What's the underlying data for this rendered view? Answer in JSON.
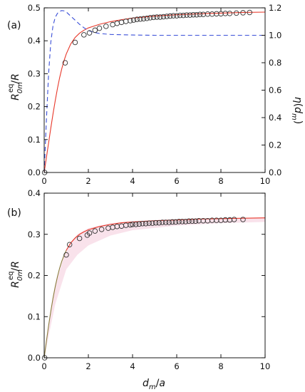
{
  "chart_data": [
    {
      "type": "line",
      "panel_label": "(a)",
      "xlabel": "d_m/a",
      "ylabel": "R_0m^eq/R",
      "y2label": "η(d_m)",
      "xlim": [
        0,
        10
      ],
      "ylim": [
        0,
        0.5
      ],
      "y2lim": [
        0,
        1.2
      ],
      "x_ticks": [
        "0",
        "2",
        "4",
        "6",
        "8",
        "10"
      ],
      "y_ticks": [
        "0.0",
        "0.1",
        "0.2",
        "0.3",
        "0.4",
        "0.5"
      ],
      "y2_ticks": [
        "0.0",
        "0.2",
        "0.4",
        "0.6",
        "0.8",
        "1.0",
        "1.2"
      ],
      "grid": false,
      "show_x_tick_labels": true,
      "series": [
        {
          "kind": "scatter",
          "axis": "left",
          "marker": "open-circle",
          "color": "#333333",
          "x": [
            0.02,
            0.95,
            1.4,
            1.8,
            2.05,
            2.3,
            2.5,
            2.8,
            3.1,
            3.3,
            3.5,
            3.7,
            3.9,
            4.05,
            4.2,
            4.35,
            4.5,
            4.65,
            4.8,
            4.95,
            5.1,
            5.25,
            5.4,
            5.55,
            5.7,
            5.85,
            6.0,
            6.15,
            6.3,
            6.45,
            6.6,
            6.75,
            6.9,
            7.05,
            7.2,
            7.4,
            7.6,
            7.8,
            8.0,
            8.2,
            8.4,
            8.7,
            9.0,
            9.3
          ],
          "y": [
            0.0,
            0.333,
            0.395,
            0.418,
            0.424,
            0.432,
            0.438,
            0.444,
            0.449,
            0.453,
            0.456,
            0.459,
            0.461,
            0.463,
            0.465,
            0.466,
            0.467,
            0.468,
            0.47,
            0.471,
            0.472,
            0.472,
            0.473,
            0.474,
            0.475,
            0.476,
            0.476,
            0.477,
            0.477,
            0.478,
            0.478,
            0.479,
            0.479,
            0.48,
            0.48,
            0.481,
            0.481,
            0.482,
            0.482,
            0.483,
            0.483,
            0.484,
            0.485,
            0.486
          ]
        },
        {
          "kind": "line",
          "axis": "left",
          "color": "#e8382a",
          "dash": "solid",
          "x": [
            0,
            0.1,
            0.2,
            0.3,
            0.4,
            0.5,
            0.6,
            0.7,
            0.8,
            0.9,
            1.0,
            1.2,
            1.4,
            1.6,
            1.8,
            2.0,
            2.5,
            3.0,
            3.5,
            4.0,
            5.0,
            6.0,
            7.0,
            8.0,
            9.0,
            10.0
          ],
          "y": [
            0.0,
            0.045,
            0.09,
            0.135,
            0.178,
            0.218,
            0.255,
            0.288,
            0.316,
            0.34,
            0.36,
            0.39,
            0.41,
            0.423,
            0.432,
            0.439,
            0.45,
            0.458,
            0.464,
            0.469,
            0.475,
            0.479,
            0.482,
            0.484,
            0.486,
            0.487
          ]
        },
        {
          "kind": "line",
          "axis": "right",
          "color": "#3a4fd8",
          "dash": "dashed",
          "x": [
            0,
            0.1,
            0.2,
            0.3,
            0.4,
            0.5,
            0.6,
            0.7,
            0.8,
            0.9,
            1.0,
            1.1,
            1.2,
            1.4,
            1.6,
            1.8,
            2.0,
            2.2,
            2.5,
            3.0,
            4.0,
            5.0,
            10.0
          ],
          "y": [
            0.0,
            0.38,
            0.72,
            0.95,
            1.07,
            1.13,
            1.16,
            1.175,
            1.18,
            1.178,
            1.17,
            1.155,
            1.14,
            1.11,
            1.08,
            1.055,
            1.035,
            1.023,
            1.013,
            1.006,
            1.002,
            1.0,
            1.0
          ]
        }
      ]
    },
    {
      "type": "line",
      "panel_label": "(b)",
      "xlabel": "d_m/a",
      "ylabel": "R_0m^eq/R",
      "xlim": [
        0,
        10
      ],
      "ylim": [
        0,
        0.4
      ],
      "x_ticks": [
        "0",
        "2",
        "4",
        "6",
        "8",
        "10"
      ],
      "y_ticks": [
        "0.0",
        "0.1",
        "0.2",
        "0.3",
        "0.4"
      ],
      "grid": false,
      "show_x_tick_labels": true,
      "series": [
        {
          "kind": "band",
          "axis": "left",
          "color": "#f7d8e4",
          "x": [
            0,
            0.5,
            1.0,
            1.5,
            2.0,
            3.0,
            4.0,
            6.0,
            8.0,
            10.0
          ],
          "y_low": [
            0.0,
            0.13,
            0.215,
            0.25,
            0.273,
            0.297,
            0.31,
            0.321,
            0.327,
            0.33
          ],
          "y_high": [
            0.0,
            0.175,
            0.265,
            0.3,
            0.315,
            0.327,
            0.332,
            0.337,
            0.339,
            0.341
          ]
        },
        {
          "kind": "scatter",
          "axis": "left",
          "marker": "open-circle",
          "color": "#333333",
          "x": [
            0.02,
            1.0,
            1.15,
            1.6,
            1.95,
            2.05,
            2.3,
            2.6,
            2.9,
            3.1,
            3.3,
            3.5,
            3.7,
            3.9,
            4.0,
            4.15,
            4.3,
            4.45,
            4.6,
            4.75,
            4.9,
            5.05,
            5.2,
            5.35,
            5.5,
            5.65,
            5.8,
            5.95,
            6.1,
            6.25,
            6.4,
            6.55,
            6.7,
            6.85,
            7.0,
            7.2,
            7.4,
            7.6,
            7.8,
            8.0,
            8.2,
            8.4,
            8.6,
            9.0
          ],
          "y": [
            0.0,
            0.25,
            0.275,
            0.29,
            0.298,
            0.303,
            0.308,
            0.312,
            0.315,
            0.317,
            0.319,
            0.32,
            0.322,
            0.323,
            0.324,
            0.324,
            0.325,
            0.326,
            0.326,
            0.327,
            0.327,
            0.328,
            0.328,
            0.329,
            0.329,
            0.329,
            0.33,
            0.33,
            0.331,
            0.331,
            0.331,
            0.332,
            0.332,
            0.332,
            0.333,
            0.333,
            0.333,
            0.334,
            0.334,
            0.334,
            0.335,
            0.335,
            0.336,
            0.336
          ]
        },
        {
          "kind": "line",
          "axis": "left",
          "color": "#8a7a3c",
          "dash": "solid",
          "x": [
            0,
            0.1,
            0.2,
            0.3,
            0.4,
            0.5,
            0.6,
            0.7,
            0.8,
            0.9,
            1.0
          ],
          "y": [
            0.0,
            0.04,
            0.078,
            0.113,
            0.145,
            0.173,
            0.197,
            0.218,
            0.235,
            0.249,
            0.261
          ]
        },
        {
          "kind": "line",
          "axis": "left",
          "color": "#e8382a",
          "dash": "solid",
          "x": [
            1.0,
            1.2,
            1.4,
            1.6,
            1.8,
            2.0,
            2.5,
            3.0,
            3.5,
            4.0,
            5.0,
            6.0,
            7.0,
            8.0,
            9.0,
            10.0
          ],
          "y": [
            0.261,
            0.279,
            0.291,
            0.3,
            0.306,
            0.311,
            0.319,
            0.324,
            0.328,
            0.33,
            0.333,
            0.335,
            0.337,
            0.338,
            0.339,
            0.34
          ]
        }
      ]
    }
  ]
}
